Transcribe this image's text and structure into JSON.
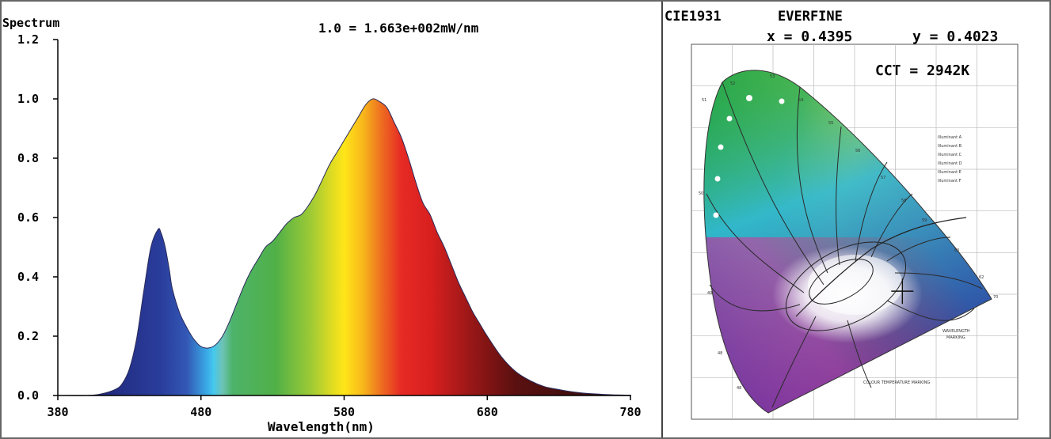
{
  "spectrum_panel": {
    "ylabel": "Spectrum",
    "scale_note": "1.0 = 1.663e+002mW/nm",
    "xlabel": "Wavelength(nm)"
  },
  "cie_panel": {
    "title": "CIE1931",
    "brand": "EVERFINE",
    "x_label": "x = 0.4395",
    "y_label": "y = 0.4023",
    "cct_label": "CCT = 2942K",
    "x_value": 0.4395,
    "y_value": 0.4023,
    "cct_kelvin": 2942
  },
  "chart_data": [
    {
      "type": "area",
      "title": "",
      "ylabel": "Spectrum",
      "xlabel": "Wavelength(nm)",
      "xlim": [
        380,
        780
      ],
      "ylim": [
        0,
        1.2
      ],
      "x_ticks": [
        "380",
        "480",
        "580",
        "680",
        "780"
      ],
      "y_ticks": [
        "0.0",
        "0.2",
        "0.4",
        "0.6",
        "0.8",
        "1.0",
        "1.2"
      ],
      "annotation": "1.0 = 1.663e+002mW/nm",
      "fill": "wavelength-rainbow",
      "series": [
        {
          "x": [
            380,
            400,
            410,
            420,
            425,
            430,
            435,
            440,
            445,
            450,
            452,
            455,
            458,
            460,
            465,
            470,
            475,
            480,
            485,
            490,
            495,
            500,
            505,
            510,
            515,
            520,
            525,
            530,
            535,
            540,
            545,
            550,
            555,
            560,
            565,
            570,
            575,
            580,
            585,
            590,
            595,
            600,
            605,
            610,
            615,
            620,
            625,
            630,
            635,
            640,
            645,
            650,
            655,
            660,
            665,
            670,
            675,
            680,
            690,
            700,
            710,
            720,
            730,
            740,
            750,
            760,
            770,
            780
          ],
          "values": [
            0.0,
            0.0,
            0.005,
            0.02,
            0.04,
            0.09,
            0.19,
            0.35,
            0.5,
            0.56,
            0.55,
            0.5,
            0.42,
            0.36,
            0.28,
            0.23,
            0.19,
            0.165,
            0.16,
            0.17,
            0.2,
            0.25,
            0.31,
            0.37,
            0.42,
            0.46,
            0.5,
            0.52,
            0.55,
            0.58,
            0.6,
            0.61,
            0.64,
            0.68,
            0.73,
            0.78,
            0.82,
            0.86,
            0.9,
            0.94,
            0.98,
            1.0,
            0.99,
            0.97,
            0.92,
            0.87,
            0.8,
            0.72,
            0.65,
            0.61,
            0.55,
            0.5,
            0.44,
            0.38,
            0.33,
            0.28,
            0.24,
            0.2,
            0.13,
            0.08,
            0.05,
            0.03,
            0.02,
            0.012,
            0.007,
            0.004,
            0.002,
            0.001
          ]
        }
      ]
    },
    {
      "type": "scatter",
      "title": "CIE1931",
      "xlabel": "",
      "ylabel": "",
      "xlim": [
        0,
        0.8
      ],
      "ylim": [
        0,
        0.9
      ],
      "series": [
        {
          "x": [
            0.4395
          ],
          "values": [
            0.4023
          ]
        }
      ]
    }
  ]
}
